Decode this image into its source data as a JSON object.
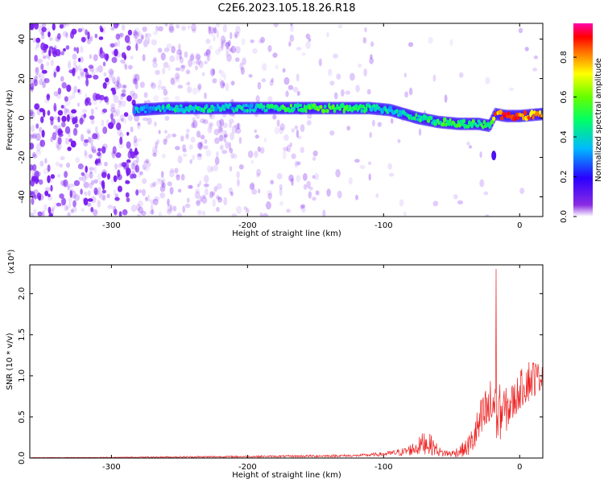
{
  "title": "C2E6.2023.105.18.26.R18",
  "charts": [
    {
      "type": "heatmap",
      "xlabel": "Height of straight line (km)",
      "ylabel": "Frequency (Hz)",
      "xlim": [
        -360,
        17
      ],
      "ylim": [
        -50,
        48
      ],
      "xticks": [
        -300,
        -200,
        -100,
        0
      ],
      "yticks": [
        -40,
        -20,
        0,
        20,
        40
      ],
      "colorbar": {
        "label": "Normalized spectral amplitude",
        "range": [
          0.0,
          0.97
        ],
        "ticks": [
          "0.0",
          "0.2",
          "0.4",
          "0.6",
          "0.8"
        ],
        "tick_values": [
          0.0,
          0.2,
          0.4,
          0.6,
          0.8
        ],
        "colormap": "rainbow"
      },
      "noise_color": "#7a1cf0",
      "ridge": {
        "x": [
          -283,
          -260,
          -240,
          -215,
          -190,
          -160,
          -140,
          -110,
          -95,
          -75,
          -60,
          -45,
          -30,
          -22,
          -18,
          -10,
          0,
          17
        ],
        "frequency": [
          4,
          5,
          5,
          5,
          5,
          5,
          5,
          5,
          4,
          0,
          -2,
          -3,
          -3,
          -4,
          2,
          1,
          1,
          2
        ],
        "amplitude": [
          0.35,
          0.4,
          0.45,
          0.35,
          0.45,
          0.5,
          0.55,
          0.45,
          0.4,
          0.45,
          0.5,
          0.5,
          0.5,
          0.45,
          0.8,
          0.9,
          0.85,
          0.75
        ]
      },
      "isolated_blob": {
        "x": -19,
        "frequency": -19,
        "amplitude": 0.15
      }
    },
    {
      "type": "line",
      "xlabel": "Height of straight line (km)",
      "ylabel": "SNR (10 * v/v)",
      "multiplier": "(x10⁴)",
      "xlim": [
        -360,
        17
      ],
      "ylim": [
        0,
        2.35
      ],
      "xticks": [
        -300,
        -200,
        -100,
        0
      ],
      "yticks": [
        "0.0",
        "0.5",
        "1.0",
        "1.5",
        "2.0"
      ],
      "ytick_values": [
        0.0,
        0.5,
        1.0,
        1.5,
        2.0
      ],
      "line_color": "#ee2222",
      "envelope": {
        "x": [
          -360,
          -300,
          -250,
          -200,
          -150,
          -120,
          -100,
          -85,
          -75,
          -70,
          -65,
          -58,
          -50,
          -40,
          -35,
          -30,
          -25,
          -20,
          -17,
          -15,
          -10,
          -5,
          0,
          5,
          10,
          17
        ],
        "base": [
          0.004,
          0.006,
          0.01,
          0.015,
          0.02,
          0.025,
          0.04,
          0.06,
          0.1,
          0.15,
          0.12,
          0.05,
          0.04,
          0.08,
          0.15,
          0.3,
          0.45,
          0.5,
          0.55,
          0.45,
          0.5,
          0.6,
          0.75,
          0.85,
          0.9,
          0.95
        ],
        "amp": [
          0.004,
          0.008,
          0.02,
          0.02,
          0.03,
          0.03,
          0.05,
          0.1,
          0.2,
          0.3,
          0.25,
          0.1,
          0.08,
          0.2,
          0.35,
          0.55,
          0.65,
          0.8,
          1.55,
          0.7,
          0.55,
          0.5,
          0.45,
          0.55,
          0.5,
          0.25
        ]
      }
    }
  ]
}
